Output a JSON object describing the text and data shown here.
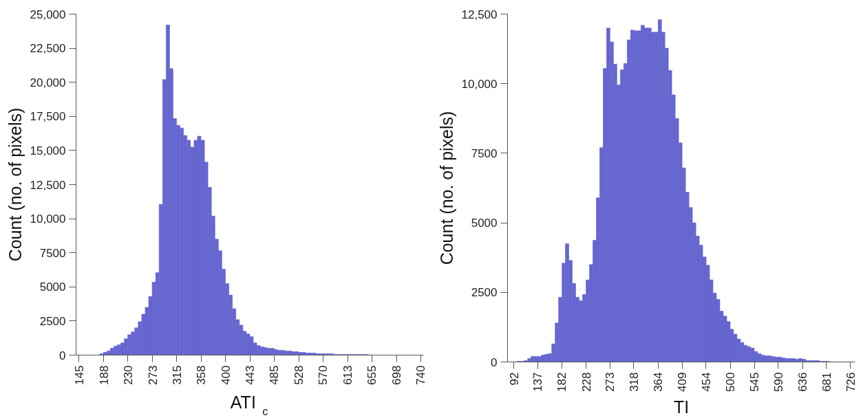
{
  "chart_data": [
    {
      "type": "histogram",
      "xlabel": "ATI$_{c}$",
      "ylabel": "Count (no. of pixels)",
      "color": "#6666d0",
      "bins": [
        145.0,
        151.1,
        157.1,
        163.2,
        169.3,
        175.4,
        181.4,
        187.5,
        193.6,
        199.6,
        205.7,
        211.8,
        217.9,
        223.9,
        230.0,
        236.1,
        242.1,
        248.2,
        254.3,
        260.4,
        266.4,
        272.5,
        278.6,
        284.6,
        290.7,
        296.8,
        302.9,
        308.9,
        315.0,
        321.1,
        327.1,
        333.2,
        339.3,
        345.4,
        351.4,
        357.5,
        363.6,
        369.6,
        375.7,
        381.8,
        387.9,
        393.9,
        400.0,
        406.1,
        412.1,
        418.2,
        424.3,
        430.4,
        436.4,
        442.5,
        448.6,
        454.6,
        460.7,
        466.8,
        472.9,
        478.9,
        485.0,
        491.1,
        497.1,
        503.2,
        509.3,
        515.4,
        521.4,
        527.5,
        533.6,
        539.6,
        545.7,
        551.8,
        557.9,
        563.9,
        570.0,
        576.1,
        582.1,
        588.2,
        594.3,
        600.4,
        606.4,
        612.5,
        618.6,
        624.6,
        630.7,
        636.8,
        642.9,
        648.9,
        655.0,
        661.1,
        667.1,
        673.2,
        679.3,
        685.4,
        691.4,
        697.5,
        703.6,
        709.6,
        715.7,
        721.8,
        727.9,
        733.9,
        740.0
      ],
      "values": [
        0,
        0,
        0,
        0,
        0,
        0,
        100,
        200,
        300,
        500,
        650,
        750,
        900,
        1200,
        1500,
        1700,
        2000,
        2450,
        3000,
        3500,
        4300,
        5350,
        6050,
        11050,
        20200,
        24200,
        21000,
        17350,
        16850,
        16650,
        16100,
        15750,
        15250,
        15750,
        16050,
        15750,
        14150,
        12300,
        10200,
        8500,
        7650,
        6300,
        5250,
        4400,
        3400,
        2600,
        2200,
        1750,
        1550,
        1350,
        900,
        700,
        600,
        550,
        500,
        500,
        400,
        350,
        350,
        300,
        300,
        250,
        250,
        200,
        200,
        150,
        150,
        150,
        100,
        100,
        100,
        100,
        100,
        50,
        50,
        50,
        50,
        50,
        50,
        50,
        50,
        50,
        50,
        0,
        0,
        0,
        0,
        0,
        0,
        0,
        0,
        0,
        0,
        0,
        0,
        0,
        0,
        0
      ],
      "xlim": [
        140,
        745
      ],
      "ylim": [
        0,
        25000
      ],
      "xticks": [
        145,
        188,
        230,
        273,
        315,
        358,
        400,
        443,
        485,
        528,
        570,
        613,
        655,
        698,
        740
      ],
      "yticks": [
        0,
        2500,
        5000,
        7500,
        {
          "value": 10000,
          "label": "10,000"
        },
        {
          "value": 12500,
          "label": "12,500"
        },
        {
          "value": 15000,
          "label": "15,000"
        },
        {
          "value": 17500,
          "label": "17,500"
        },
        {
          "value": 20000,
          "label": "20,000"
        },
        {
          "value": 22500,
          "label": "22,500"
        },
        {
          "value": 25000,
          "label": "25,000"
        }
      ]
    },
    {
      "type": "histogram",
      "xlabel": "TI",
      "ylabel": "Count (no. of pixels)",
      "color": "#6666d0",
      "bins": [
        92.0,
        98.5,
        104.9,
        111.4,
        117.9,
        124.3,
        130.8,
        137.3,
        143.8,
        150.2,
        156.7,
        163.2,
        169.6,
        176.1,
        182.6,
        189.0,
        195.5,
        202.0,
        208.4,
        214.9,
        221.4,
        227.9,
        234.3,
        240.8,
        247.3,
        253.7,
        260.2,
        266.7,
        273.1,
        279.6,
        286.1,
        292.5,
        299.0,
        305.5,
        311.9,
        318.4,
        324.9,
        331.4,
        337.8,
        344.3,
        350.8,
        357.2,
        363.7,
        370.2,
        376.6,
        383.1,
        389.6,
        396.0,
        402.5,
        409.0,
        415.5,
        421.9,
        428.4,
        434.9,
        441.3,
        447.8,
        454.3,
        460.7,
        467.2,
        473.7,
        480.1,
        486.6,
        493.1,
        499.6,
        506.0,
        512.5,
        519.0,
        525.4,
        531.9,
        538.4,
        544.9,
        551.3,
        557.8,
        564.3,
        570.7,
        577.2,
        583.7,
        590.1,
        596.6,
        603.1,
        609.5,
        616.0,
        622.5,
        628.9,
        635.4,
        641.9,
        648.4,
        654.8,
        661.3,
        667.8,
        674.2,
        680.7,
        687.2,
        693.6,
        700.1,
        706.6,
        713.0,
        719.5,
        726.0
      ],
      "values": [
        0,
        25,
        25,
        50,
        125,
        200,
        200,
        200,
        250,
        275,
        300,
        650,
        1400,
        2325,
        3550,
        4250,
        3650,
        2825,
        2325,
        2200,
        2425,
        2950,
        3500,
        4375,
        5900,
        7700,
        10550,
        12000,
        11500,
        10700,
        9950,
        10500,
        10725,
        11575,
        11925,
        11900,
        11900,
        12100,
        12000,
        12000,
        11850,
        11850,
        12300,
        11850,
        11275,
        10475,
        9600,
        8750,
        7875,
        6975,
        6100,
        5550,
        5000,
        4525,
        4200,
        3775,
        3475,
        2950,
        2475,
        2250,
        1825,
        1650,
        1450,
        1175,
        1000,
        825,
        700,
        600,
        550,
        500,
        375,
        300,
        250,
        225,
        225,
        200,
        175,
        175,
        150,
        125,
        125,
        125,
        100,
        125,
        100,
        50,
        50,
        50,
        50,
        25,
        25,
        25,
        0,
        0,
        0,
        0,
        0,
        0
      ],
      "xlim": [
        80,
        735
      ],
      "ylim": [
        0,
        12500
      ],
      "xticks": [
        92,
        137,
        182,
        228,
        273,
        318,
        364,
        409,
        454,
        500,
        545,
        590,
        636,
        681,
        726
      ],
      "yticks": [
        0,
        2500,
        5000,
        7500,
        {
          "value": 10000,
          "label": "10,000"
        },
        {
          "value": 12500,
          "label": "12,500"
        }
      ]
    }
  ]
}
